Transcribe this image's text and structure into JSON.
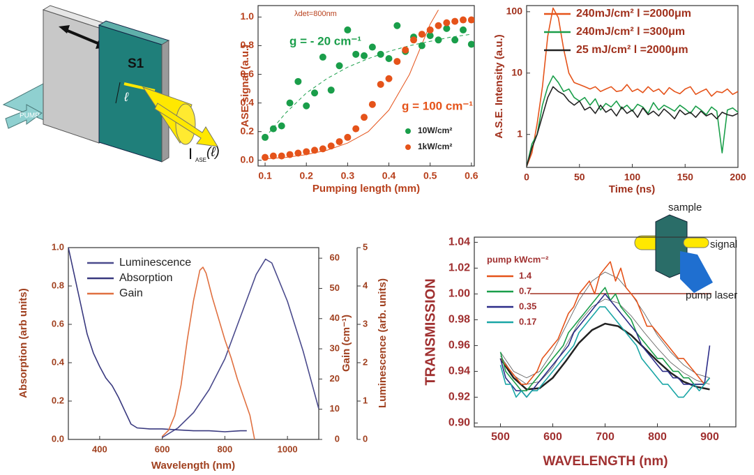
{
  "diagram": {
    "plate_label": "S1",
    "pump_label": "PUMP",
    "length_label": "ℓ",
    "output_label": {
      "main": "I",
      "sub": "ASE",
      "arg": "(ℓ)"
    }
  },
  "chart_data": [
    {
      "type": "scatter",
      "xlabel": "Pumping length (mm)",
      "ylabel": "ASE signal (a.u.)",
      "xlim": [
        0.083,
        0.607
      ],
      "ylim": [
        -0.04,
        1.08
      ],
      "xticks": [
        0.1,
        0.2,
        0.3,
        0.4,
        0.5,
        0.6
      ],
      "yticks": [
        {
          "value": 0,
          "label": "0.0"
        },
        0.2,
        0.4,
        0.6,
        0.8,
        {
          "value": 1,
          "label": "1.0"
        }
      ],
      "x": [
        0.1,
        0.12,
        0.14,
        0.16,
        0.18,
        0.2,
        0.22,
        0.24,
        0.26,
        0.28,
        0.3,
        0.32,
        0.34,
        0.36,
        0.38,
        0.4,
        0.42,
        0.44,
        0.46,
        0.48,
        0.5,
        0.52,
        0.54,
        0.56,
        0.58,
        0.6
      ],
      "series": [
        {
          "name": "10W/cm²",
          "color": "#1a9e4a",
          "values": [
            0.16,
            0.22,
            0.24,
            0.4,
            0.55,
            0.38,
            0.47,
            0.72,
            0.49,
            0.66,
            0.91,
            0.74,
            0.73,
            0.79,
            0.74,
            0.71,
            0.94,
            0.76,
            0.86,
            0.8,
            0.87,
            0.84,
            0.92,
            0.84,
            0.91,
            0.81
          ]
        },
        {
          "name": "1kW/cm²",
          "color": "#e5531a",
          "values": [
            0.02,
            0.03,
            0.03,
            0.04,
            0.05,
            0.06,
            0.07,
            0.08,
            0.1,
            0.13,
            0.16,
            0.22,
            0.3,
            0.39,
            0.53,
            0.57,
            0.69,
            0.77,
            0.84,
            0.88,
            0.91,
            0.94,
            0.96,
            0.97,
            0.98,
            0.98
          ]
        }
      ],
      "fits": [
        {
          "color": "#1a9e4a",
          "dash": true,
          "x": [
            0.1,
            0.15,
            0.2,
            0.25,
            0.3,
            0.35,
            0.4,
            0.45,
            0.5,
            0.55,
            0.6
          ],
          "values": [
            0.16,
            0.33,
            0.47,
            0.57,
            0.65,
            0.71,
            0.76,
            0.8,
            0.83,
            0.86,
            0.88
          ]
        },
        {
          "color": "#e5531a",
          "dash": false,
          "x": [
            0.1,
            0.15,
            0.2,
            0.25,
            0.3,
            0.35,
            0.4,
            0.45,
            0.5,
            0.52
          ],
          "values": [
            0.01,
            0.02,
            0.04,
            0.07,
            0.12,
            0.2,
            0.35,
            0.6,
            0.95,
            1.05
          ]
        }
      ],
      "annotations": [
        {
          "text": "λdet=800nm",
          "color": "#b8401c"
        },
        {
          "text": "g = - 20 cm⁻¹",
          "color": "#1a9e4a"
        },
        {
          "text": "g = 100 cm⁻¹",
          "color": "#e5531a"
        }
      ]
    },
    {
      "type": "line",
      "xlabel": "Time (ns)",
      "ylabel": "A.S.E. Intensity (a.u.)",
      "log_y": true,
      "xlim": [
        0,
        200
      ],
      "ylim": [
        0.29,
        126
      ],
      "xticks": [
        0,
        50,
        100,
        150,
        200
      ],
      "yticks": [
        1,
        10,
        100
      ],
      "x": [
        0,
        5,
        10,
        15,
        20,
        25,
        30,
        35,
        40,
        45,
        50,
        55,
        60,
        65,
        70,
        75,
        80,
        85,
        90,
        95,
        100,
        105,
        110,
        115,
        120,
        125,
        130,
        135,
        140,
        145,
        150,
        155,
        160,
        165,
        170,
        175,
        180,
        185,
        190,
        195,
        200
      ],
      "series": [
        {
          "name": "240mJ/cm² l =2000μm",
          "color": "#e5531a",
          "values": [
            0.3,
            0.5,
            1.5,
            6,
            40,
            115,
            80,
            25,
            10,
            7,
            6.5,
            6,
            5.5,
            6,
            5,
            5.5,
            6,
            5,
            5.2,
            6.5,
            5,
            5.5,
            4.8,
            6,
            5,
            5.5,
            4.5,
            5.8,
            5,
            4.6,
            5.5,
            6,
            4.5,
            5,
            5.5,
            4.2,
            5,
            4.8,
            5.5,
            4.5,
            5
          ]
        },
        {
          "name": "240mJ/cm² l =300μm",
          "color": "#1a9e4a",
          "values": [
            0.3,
            0.7,
            1,
            3,
            6,
            9,
            7,
            5,
            5.5,
            4,
            3.5,
            4,
            3,
            3.8,
            2.5,
            3.2,
            2.8,
            3.5,
            2.6,
            3,
            2.4,
            3.1,
            2.8,
            2.2,
            3.3,
            2.5,
            3,
            2.7,
            2.4,
            3,
            2.6,
            2.2,
            2.9,
            2.5,
            2.1,
            2.8,
            2.4,
            0.5,
            2.5,
            2.7,
            2.3
          ]
        },
        {
          "name": "25  mJ/cm² l =2000μm",
          "color": "#222222",
          "values": [
            0.3,
            0.6,
            1,
            2,
            4,
            6,
            5,
            4.5,
            3.5,
            3,
            3.5,
            2.5,
            2.8,
            2.2,
            3,
            2.3,
            2.6,
            2,
            2.8,
            2.2,
            2.5,
            1.9,
            2.7,
            2.1,
            2.4,
            2,
            2.6,
            2.2,
            1.8,
            2.5,
            2.1,
            2.3,
            1.9,
            2.4,
            2,
            2.2,
            1.8,
            2.3,
            2.1,
            2,
            2.2
          ]
        }
      ]
    },
    {
      "type": "line",
      "xlabel": "Wavelength (nm)",
      "ylabel": "Absorption (arb units)",
      "y2label": "Gain (cm⁻¹)",
      "y3label": "Luminescence (arb. units)",
      "xlim": [
        300,
        1100
      ],
      "ylim": [
        0,
        1
      ],
      "y2lim": [
        0,
        63.5
      ],
      "y3lim": [
        0,
        5
      ],
      "xticks": [
        400,
        600,
        800,
        1000
      ],
      "yticks": [
        {
          "value": 0,
          "label": "0.0"
        },
        0.2,
        0.4,
        0.6,
        0.8,
        {
          "value": 1,
          "label": "1.0"
        }
      ],
      "y2ticks": [
        0,
        10,
        20,
        30,
        40,
        50,
        60
      ],
      "y3ticks": [
        0,
        1,
        2,
        3,
        4,
        5
      ],
      "series": [
        {
          "name": "Luminescence",
          "color": "#4a4a8c",
          "axis": "y3",
          "x": [
            600,
            650,
            700,
            750,
            800,
            850,
            900,
            930,
            950,
            1000,
            1050,
            1100
          ],
          "values": [
            0.05,
            0.3,
            0.7,
            1.3,
            2.1,
            3.2,
            4.3,
            4.7,
            4.6,
            3.6,
            2.3,
            0.8
          ]
        },
        {
          "name": "Absorption",
          "color": "#38387e",
          "axis": "y",
          "x": [
            300,
            320,
            340,
            360,
            380,
            400,
            420,
            440,
            460,
            480,
            500,
            520,
            560,
            600,
            650,
            700,
            750,
            800,
            850,
            870
          ],
          "values": [
            1,
            0.85,
            0.7,
            0.55,
            0.45,
            0.38,
            0.32,
            0.28,
            0.22,
            0.15,
            0.08,
            0.06,
            0.055,
            0.055,
            0.05,
            0.045,
            0.045,
            0.04,
            0.045,
            0.045
          ]
        },
        {
          "name": "Gain",
          "color": "#e07040",
          "axis": "y2",
          "x": [
            600,
            620,
            640,
            660,
            680,
            700,
            720,
            730,
            740,
            760,
            780,
            800,
            820,
            840,
            860,
            880,
            895
          ],
          "values": [
            1,
            3,
            8,
            18,
            33,
            46,
            56,
            57,
            55,
            47,
            40,
            33,
            27,
            20,
            14,
            8,
            0
          ]
        }
      ]
    },
    {
      "type": "line",
      "xlabel": "WAVELENGTH (nm)",
      "ylabel": "TRANSMISSION",
      "legend_title": "pump kWcm⁻²",
      "xlim": [
        450,
        950
      ],
      "ylim": [
        0.897,
        1.044
      ],
      "xticks": [
        500,
        600,
        700,
        800,
        900
      ],
      "yticks": [
        {
          "value": 0.9,
          "label": "0.90"
        },
        0.92,
        0.94,
        0.96,
        0.98,
        {
          "value": 1,
          "label": "1.00"
        },
        1.02,
        1.04
      ],
      "x": [
        500,
        510,
        520,
        530,
        540,
        550,
        560,
        570,
        580,
        590,
        600,
        610,
        620,
        630,
        640,
        650,
        660,
        670,
        680,
        690,
        700,
        710,
        720,
        730,
        740,
        750,
        760,
        770,
        780,
        790,
        800,
        810,
        820,
        830,
        840,
        850,
        860,
        870,
        880,
        890,
        900
      ],
      "series": [
        {
          "name": "1.4",
          "color": "#e5531a",
          "values": [
            0.95,
            0.945,
            0.94,
            0.935,
            0.93,
            0.93,
            0.935,
            0.94,
            0.95,
            0.955,
            0.96,
            0.965,
            0.975,
            0.985,
            0.99,
            1.0,
            1.005,
            1.01,
            1.0,
            1.015,
            1.02,
            1.025,
            1.01,
            1.02,
            1.005,
            1.0,
            0.995,
            0.985,
            0.975,
            0.975,
            0.97,
            0.965,
            0.96,
            0.955,
            0.95,
            0.95,
            0.945,
            0.94,
            0.935,
            0.93,
            0.935
          ]
        },
        {
          "name": "0.7",
          "color": "#1a9e4a",
          "values": [
            0.955,
            0.94,
            0.935,
            0.93,
            0.925,
            0.925,
            0.93,
            0.935,
            0.94,
            0.945,
            0.95,
            0.955,
            0.96,
            0.97,
            0.975,
            0.98,
            0.985,
            0.99,
            0.995,
            1.0,
            1.005,
            0.995,
            1.0,
            0.99,
            0.985,
            0.98,
            0.97,
            0.965,
            0.96,
            0.955,
            0.95,
            0.95,
            0.945,
            0.94,
            0.94,
            0.935,
            0.935,
            0.93,
            0.93,
            0.93,
            0.935
          ]
        },
        {
          "name": "0.35",
          "color": "#2c2c88",
          "values": [
            0.95,
            0.935,
            0.93,
            0.925,
            0.925,
            0.92,
            0.925,
            0.93,
            0.935,
            0.94,
            0.945,
            0.95,
            0.955,
            0.96,
            0.97,
            0.975,
            0.98,
            0.985,
            0.99,
            0.995,
            1.0,
            0.995,
            0.99,
            0.985,
            0.98,
            0.975,
            0.97,
            0.96,
            0.955,
            0.95,
            0.945,
            0.94,
            0.94,
            0.935,
            0.935,
            0.93,
            0.93,
            0.93,
            0.93,
            0.93,
            0.96
          ]
        },
        {
          "name": "0.17",
          "color": "#1aa6a6",
          "values": [
            0.945,
            0.93,
            0.93,
            0.92,
            0.925,
            0.92,
            0.925,
            0.925,
            0.93,
            0.935,
            0.94,
            0.945,
            0.95,
            0.955,
            0.96,
            0.97,
            0.975,
            0.98,
            0.985,
            0.99,
            0.99,
            0.985,
            0.98,
            0.975,
            0.97,
            0.965,
            0.96,
            0.95,
            0.945,
            0.94,
            0.935,
            0.93,
            0.93,
            0.925,
            0.92,
            0.92,
            0.925,
            0.93,
            0.925,
            0.93,
            0.935
          ]
        }
      ],
      "fits": [
        {
          "color": "#222222",
          "width": 2.5,
          "x": [
            500,
            525,
            550,
            575,
            600,
            625,
            650,
            675,
            700,
            725,
            750,
            775,
            800,
            825,
            850,
            875,
            900
          ],
          "values": [
            0.95,
            0.935,
            0.926,
            0.927,
            0.935,
            0.948,
            0.962,
            0.972,
            0.977,
            0.975,
            0.968,
            0.958,
            0.948,
            0.939,
            0.932,
            0.928,
            0.926
          ]
        },
        {
          "color": "#555555",
          "width": 0.8,
          "x": [
            500,
            525,
            550,
            575,
            600,
            625,
            650,
            675,
            700,
            725,
            750,
            775,
            800,
            825,
            850,
            875,
            900
          ],
          "values": [
            0.955,
            0.94,
            0.935,
            0.94,
            0.955,
            0.975,
            0.995,
            1.01,
            1.017,
            1.012,
            1.0,
            0.985,
            0.968,
            0.955,
            0.945,
            0.938,
            0.935
          ]
        },
        {
          "color": "#555555",
          "width": 0.8,
          "x": [
            500,
            525,
            550,
            575,
            600,
            625,
            650,
            675,
            700,
            725,
            750,
            775,
            800,
            825,
            850,
            875,
            900
          ],
          "values": [
            0.952,
            0.937,
            0.93,
            0.932,
            0.943,
            0.96,
            0.978,
            0.99,
            0.996,
            0.993,
            0.983,
            0.97,
            0.958,
            0.947,
            0.939,
            0.933,
            0.93
          ]
        }
      ],
      "annotations": [
        {
          "text": "sample",
          "color": "#222222"
        },
        {
          "text": "signal",
          "color": "#222222"
        },
        {
          "text": "pump laser",
          "color": "#222222"
        }
      ]
    }
  ]
}
